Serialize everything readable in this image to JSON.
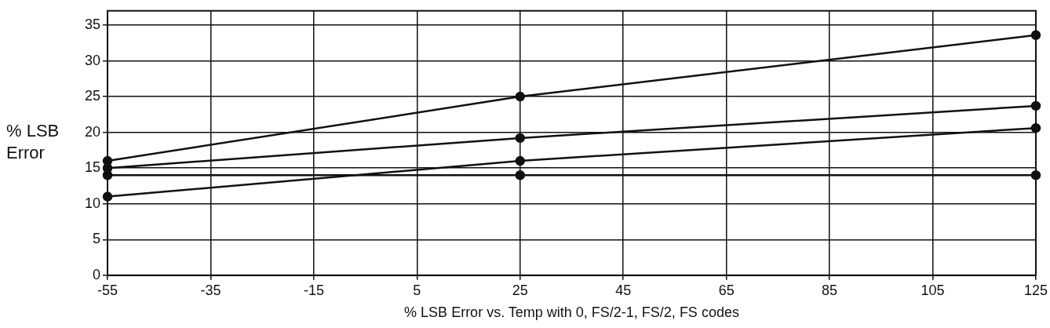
{
  "chart_data": {
    "type": "line",
    "xlabel": "% LSB Error vs. Temp with 0, FS/2-1, FS/2, FS codes",
    "ylabel": "% LSB Error",
    "x": [
      -55,
      25,
      125
    ],
    "series": [
      {
        "color": "#111111",
        "values": [
          16,
          25,
          33.6
        ]
      },
      {
        "color": "#111111",
        "values": [
          15,
          19.2,
          23.7
        ]
      },
      {
        "color": "#111111",
        "values": [
          11,
          16,
          20.6
        ]
      },
      {
        "color": "#111111",
        "values": [
          14,
          14,
          14
        ]
      }
    ],
    "xlim": [
      -55,
      125
    ],
    "xticks": [
      -55,
      -35,
      -15,
      5,
      25,
      45,
      65,
      85,
      105,
      125
    ],
    "ylim": [
      0,
      37
    ],
    "yticks": [
      0,
      5,
      10,
      15,
      20,
      25,
      30,
      35
    ],
    "grid": true,
    "legend": false,
    "marker": "circle",
    "line_style": "solid"
  }
}
